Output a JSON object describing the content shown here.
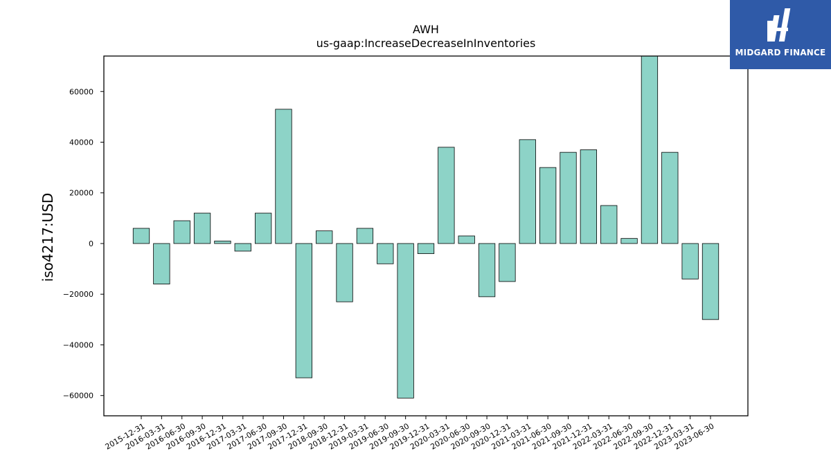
{
  "brand": {
    "name": "MIDGARD FINANCE"
  },
  "chart_data": {
    "type": "bar",
    "title": "AWH",
    "subtitle": "us-gaap:IncreaseDecreaseInInventories",
    "xlabel": "",
    "ylabel": "iso4217:USD",
    "ylim": [
      -68000,
      74000
    ],
    "yticks": [
      -60000,
      -40000,
      -20000,
      0,
      20000,
      40000,
      60000
    ],
    "ytick_labels": [
      "−60000",
      "−40000",
      "−20000",
      "0",
      "20000",
      "40000",
      "60000"
    ],
    "grid": false,
    "bar_color": "#8dd3c7",
    "categories": [
      "2015-12-31",
      "2016-03-31",
      "2016-06-30",
      "2016-09-30",
      "2016-12-31",
      "2017-03-31",
      "2017-06-30",
      "2017-09-30",
      "2017-12-31",
      "2018-09-30",
      "2018-12-31",
      "2019-03-31",
      "2019-06-30",
      "2019-09-30",
      "2019-12-31",
      "2020-03-31",
      "2020-06-30",
      "2020-09-30",
      "2020-12-31",
      "2021-03-31",
      "2021-06-30",
      "2021-09-30",
      "2021-12-31",
      "2022-03-31",
      "2022-06-30",
      "2022-09-30",
      "2022-12-31",
      "2023-03-31",
      "2023-06-30"
    ],
    "values": [
      6000,
      -16000,
      9000,
      12000,
      1000,
      -3000,
      12000,
      53000,
      -53000,
      5000,
      -23000,
      6000,
      -8000,
      -61000,
      -4000,
      38000,
      3000,
      -21000,
      -15000,
      41000,
      30000,
      36000,
      37000,
      15000,
      2000,
      78000,
      36000,
      -14000,
      -30000
    ]
  }
}
